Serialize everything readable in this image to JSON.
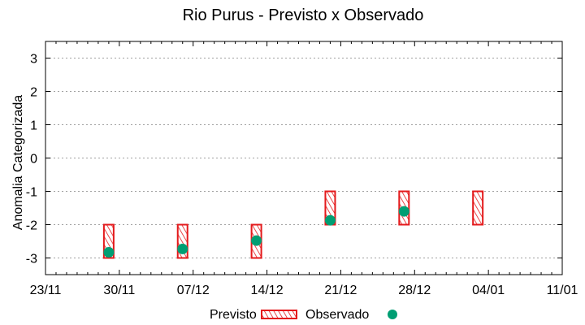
{
  "chart_data": {
    "type": "bar",
    "title": "Rio Purus - Previsto x Observado",
    "xlabel": "",
    "ylabel": "Anomalia Categorizada",
    "ylim": [
      -3.5,
      3.5
    ],
    "yticks": [
      "3",
      "2",
      "1",
      "0",
      "-1",
      "-2",
      "-3"
    ],
    "ytick_values": [
      3,
      2,
      1,
      0,
      -1,
      -2,
      -3
    ],
    "xticks": [
      "23/11",
      "30/11",
      "07/12",
      "14/12",
      "21/12",
      "28/12",
      "04/01",
      "11/01"
    ],
    "grid": "horizontal dotted",
    "legend_position": "bottom",
    "categories": [
      "29/11",
      "06/12",
      "13/12",
      "20/12",
      "27/12",
      "03/01"
    ],
    "series": [
      {
        "name": "Previsto",
        "kind": "range-box",
        "color": "#e41a1c",
        "values_low": [
          -3,
          -3,
          -3,
          -2,
          -2,
          -2
        ],
        "values_high": [
          -2,
          -2,
          -2,
          -1,
          -1,
          -1
        ]
      },
      {
        "name": "Observado",
        "kind": "point",
        "color": "#009e73",
        "values": [
          -2.83,
          -2.73,
          -2.48,
          -1.87,
          -1.6,
          null
        ]
      }
    ]
  },
  "legend": {
    "previsto_label": "Previsto",
    "observado_label": "Observado"
  }
}
